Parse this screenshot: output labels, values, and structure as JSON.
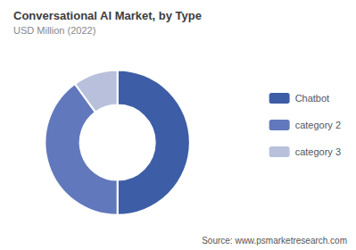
{
  "chart_data": {
    "type": "pie",
    "title": "Conversational AI Market, by Type",
    "subtitle": "USD Million (2022)",
    "categories": [
      "Chatbot",
      "category 2",
      "category 3"
    ],
    "values": [
      50,
      40,
      10
    ],
    "colors": [
      "#3d5ea6",
      "#6278bc",
      "#b8c0dc"
    ],
    "legend": "right",
    "annotations": [
      "Source: www.psmarketresearch.com"
    ]
  }
}
